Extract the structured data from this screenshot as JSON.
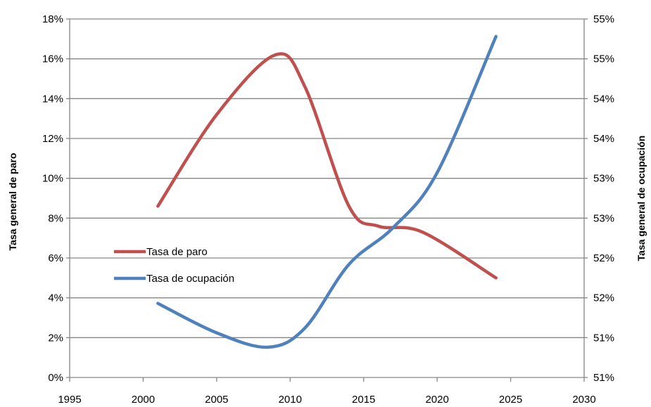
{
  "chart_data": {
    "type": "line",
    "x_axis": {
      "min": 1995,
      "max": 2030,
      "step": 5,
      "tick_labels": [
        "1995",
        "2000",
        "2005",
        "2010",
        "2015",
        "2020",
        "2025",
        "2030"
      ]
    },
    "y_axis_left": {
      "label": "Tasa general de paro",
      "min": 0,
      "max": 18,
      "step": 2,
      "tick_labels": [
        "0%",
        "2%",
        "4%",
        "6%",
        "8%",
        "10%",
        "12%",
        "14%",
        "16%",
        "18%"
      ]
    },
    "y_axis_right": {
      "label": "Tasa general de ocupación",
      "min": 51.0,
      "max": 55.5,
      "step": 0.5,
      "tick_labels": [
        "51%",
        "51%",
        "52%",
        "52%",
        "53%",
        "53%",
        "54%",
        "54%",
        "55%",
        "55%"
      ]
    },
    "grid": "horizontal",
    "legend_position": "left-middle",
    "series": [
      {
        "name": "Tasa de paro",
        "axis": "left",
        "color": "#c0504d",
        "x": [
          2001,
          2005,
          2009,
          2011,
          2014,
          2016,
          2019,
          2024
        ],
        "y": [
          8.6,
          13.2,
          16.2,
          14.6,
          8.6,
          7.6,
          7.3,
          5.0
        ]
      },
      {
        "name": "Tasa de ocupación",
        "axis": "right",
        "color": "#4f81bd",
        "x": [
          2001,
          2005,
          2008.5,
          2011,
          2014,
          2017,
          2020,
          2024
        ],
        "y": [
          51.93,
          51.56,
          51.38,
          51.62,
          52.42,
          52.88,
          53.57,
          55.28
        ]
      }
    ]
  }
}
